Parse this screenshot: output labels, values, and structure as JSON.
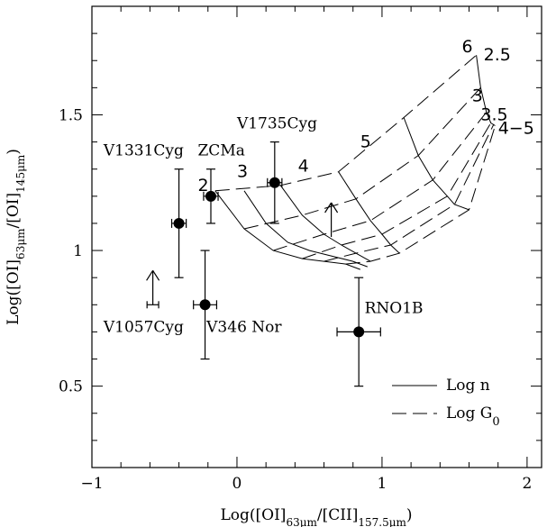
{
  "chart_data": {
    "type": "scatter",
    "title": "",
    "xlabel": "Log([OI]63μm/[CII]157.5μm)",
    "ylabel": "Log([OI]63μm/[OI]145μm)",
    "xlim": [
      -1,
      2.1
    ],
    "ylim": [
      0.2,
      1.9
    ],
    "x_ticks": [
      -1,
      0,
      1,
      2
    ],
    "x_tick_labels": [
      "−1",
      "0",
      "1",
      "2"
    ],
    "y_ticks": [
      0.5,
      1,
      1.5
    ],
    "y_tick_labels": [
      "0.5",
      "1",
      "1.5"
    ],
    "points": [
      {
        "name": "V1331Cyg",
        "x": -0.4,
        "y": 1.1,
        "xerr": [
          0.05,
          0.05
        ],
        "yerr": [
          0.2,
          0.2
        ]
      },
      {
        "name": "ZCMa",
        "x": -0.18,
        "y": 1.2,
        "xerr": [
          0.05,
          0.05
        ],
        "yerr": [
          0.1,
          0.1
        ]
      },
      {
        "name": "V1735Cyg",
        "x": 0.26,
        "y": 1.25,
        "xerr": [
          0.05,
          0.05
        ],
        "yerr": [
          0.15,
          0.15
        ]
      },
      {
        "name": "V346 Nor",
        "x": -0.22,
        "y": 0.8,
        "xerr": [
          0.08,
          0.08
        ],
        "yerr": [
          0.2,
          0.2
        ]
      },
      {
        "name": "RNO1B",
        "x": 0.84,
        "y": 0.7,
        "xerr": [
          0.15,
          0.15
        ],
        "yerr": [
          0.2,
          0.2
        ]
      }
    ],
    "limits": [
      {
        "name": "V1057Cyg",
        "x": -0.58,
        "y": 0.8,
        "xerr": [
          0.04,
          0.04
        ],
        "direction": "up"
      },
      {
        "x": 0.65,
        "y": 1.05,
        "direction": "up"
      }
    ],
    "annotations": [
      {
        "text": "V1331Cyg",
        "x": -0.92,
        "y": 1.35
      },
      {
        "text": "ZCMa",
        "x": -0.27,
        "y": 1.35
      },
      {
        "text": "V1735Cyg",
        "x": 0.0,
        "y": 1.45
      },
      {
        "text": "V1057Cyg",
        "x": -0.92,
        "y": 0.7
      },
      {
        "text": "V346 Nor",
        "x": -0.21,
        "y": 0.7
      },
      {
        "text": "RNO1B",
        "x": 0.88,
        "y": 0.77
      }
    ],
    "log_n_labels": [
      {
        "text": "2",
        "x": -0.27,
        "y": 1.22
      },
      {
        "text": "3",
        "x": 0.0,
        "y": 1.27
      },
      {
        "text": "4",
        "x": 0.42,
        "y": 1.29
      },
      {
        "text": "5",
        "x": 0.85,
        "y": 1.38
      },
      {
        "text": "6",
        "x": 1.55,
        "y": 1.73
      }
    ],
    "log_g0_labels": [
      {
        "text": "2.5",
        "x": 1.7,
        "y": 1.7
      },
      {
        "text": "3",
        "x": 1.62,
        "y": 1.55
      },
      {
        "text": "3.5",
        "x": 1.68,
        "y": 1.48
      },
      {
        "text": "4−5",
        "x": 1.8,
        "y": 1.43
      }
    ],
    "legend": {
      "position": "bottom-right",
      "entries": [
        {
          "style": "solid",
          "label": "Log n"
        },
        {
          "style": "dashed",
          "label": "Log G",
          "subscript": "0"
        }
      ]
    },
    "solid_curves": [
      [
        [
          -0.15,
          1.22
        ],
        [
          0.05,
          1.08
        ],
        [
          0.25,
          1.0
        ],
        [
          0.45,
          0.97
        ],
        [
          0.6,
          0.96
        ],
        [
          0.75,
          0.95
        ],
        [
          0.85,
          0.93
        ]
      ],
      [
        [
          0.05,
          1.22
        ],
        [
          0.2,
          1.1
        ],
        [
          0.35,
          1.03
        ],
        [
          0.5,
          1.0
        ],
        [
          0.65,
          0.98
        ],
        [
          0.8,
          0.96
        ],
        [
          0.9,
          0.94
        ]
      ],
      [
        [
          0.3,
          1.24
        ],
        [
          0.45,
          1.13
        ],
        [
          0.6,
          1.06
        ],
        [
          0.72,
          1.02
        ],
        [
          0.82,
          0.99
        ],
        [
          0.92,
          0.96
        ]
      ],
      [
        [
          0.7,
          1.29
        ],
        [
          0.82,
          1.19
        ],
        [
          0.92,
          1.11
        ],
        [
          1.0,
          1.06
        ],
        [
          1.06,
          1.02
        ],
        [
          1.12,
          0.99
        ]
      ],
      [
        [
          1.15,
          1.49
        ],
        [
          1.25,
          1.35
        ],
        [
          1.35,
          1.26
        ],
        [
          1.45,
          1.2
        ],
        [
          1.5,
          1.17
        ],
        [
          1.6,
          1.15
        ]
      ],
      [
        [
          1.65,
          1.72
        ],
        [
          1.68,
          1.6
        ],
        [
          1.72,
          1.51
        ],
        [
          1.75,
          1.47
        ],
        [
          1.78,
          1.46
        ]
      ]
    ],
    "dashed_curves": [
      [
        [
          -0.15,
          1.22
        ],
        [
          0.3,
          1.24
        ],
        [
          0.7,
          1.29
        ],
        [
          1.15,
          1.49
        ],
        [
          1.65,
          1.72
        ]
      ],
      [
        [
          0.05,
          1.08
        ],
        [
          0.45,
          1.13
        ],
        [
          0.82,
          1.19
        ],
        [
          1.25,
          1.35
        ],
        [
          1.68,
          1.6
        ]
      ],
      [
        [
          0.25,
          1.0
        ],
        [
          0.6,
          1.06
        ],
        [
          0.92,
          1.11
        ],
        [
          1.35,
          1.26
        ],
        [
          1.72,
          1.51
        ]
      ],
      [
        [
          0.45,
          0.97
        ],
        [
          0.72,
          1.02
        ],
        [
          1.0,
          1.06
        ],
        [
          1.45,
          1.2
        ],
        [
          1.75,
          1.47
        ]
      ],
      [
        [
          0.6,
          0.96
        ],
        [
          0.82,
          0.99
        ],
        [
          1.06,
          1.02
        ],
        [
          1.5,
          1.17
        ],
        [
          1.77,
          1.465
        ]
      ],
      [
        [
          0.75,
          0.95
        ],
        [
          0.92,
          0.96
        ],
        [
          1.12,
          0.99
        ],
        [
          1.6,
          1.15
        ],
        [
          1.78,
          1.46
        ]
      ]
    ]
  }
}
